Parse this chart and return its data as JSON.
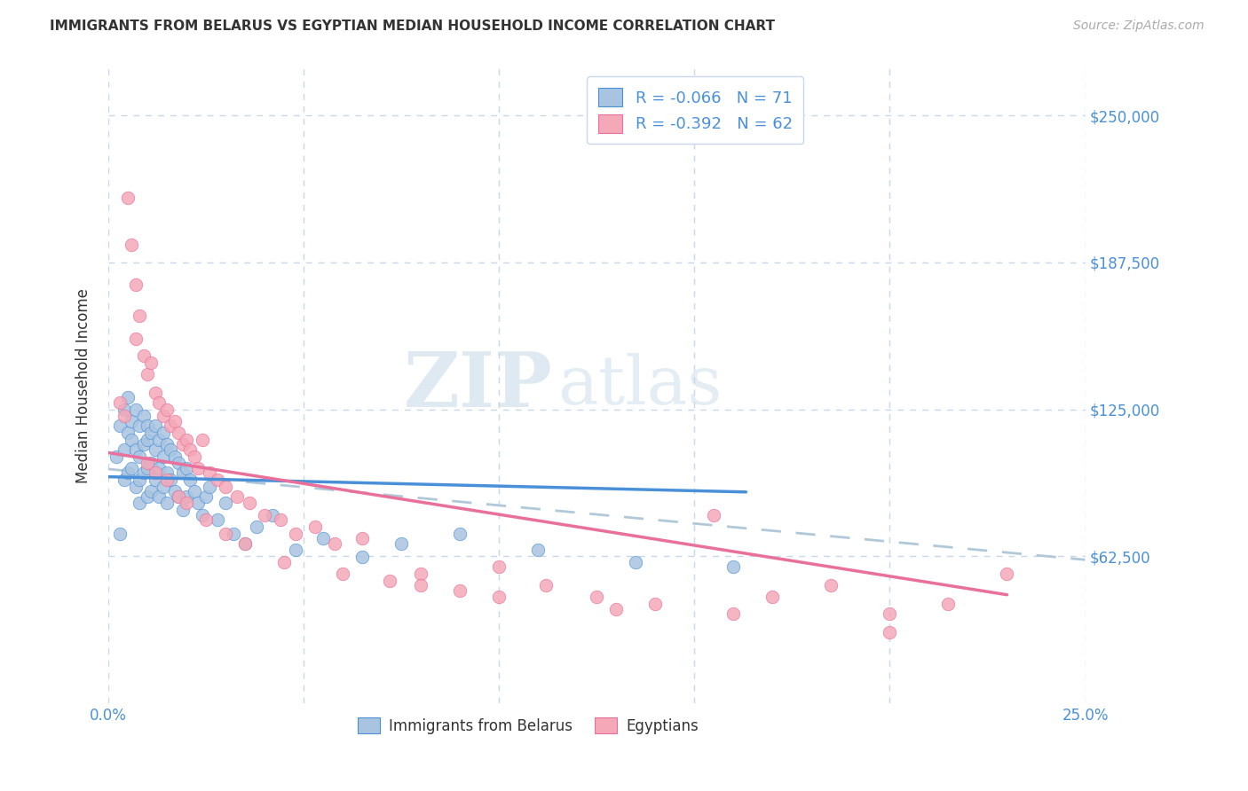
{
  "title": "IMMIGRANTS FROM BELARUS VS EGYPTIAN MEDIAN HOUSEHOLD INCOME CORRELATION CHART",
  "source": "Source: ZipAtlas.com",
  "ylabel": "Median Household Income",
  "xlim": [
    0.0,
    0.25
  ],
  "ylim": [
    0,
    270000
  ],
  "yticks": [
    62500,
    125000,
    187500,
    250000
  ],
  "ytick_labels": [
    "$62,500",
    "$125,000",
    "$187,500",
    "$250,000"
  ],
  "xticks": [
    0.0,
    0.05,
    0.1,
    0.15,
    0.2,
    0.25
  ],
  "xtick_labels": [
    "0.0%",
    "",
    "",
    "",
    "",
    "25.0%"
  ],
  "legend_r_belarus": "R = -0.066",
  "legend_n_belarus": "N = 71",
  "legend_r_egypt": "R = -0.392",
  "legend_n_egypt": "N = 62",
  "color_belarus": "#a8c4e0",
  "color_egypt": "#f4a8b8",
  "color_trend_belarus": "#4a90d9",
  "color_trend_egypt": "#e8709a",
  "color_trend_dashed": "#b0c8d8",
  "background_color": "#ffffff",
  "grid_color": "#c8d8e8",
  "belarus_x": [
    0.002,
    0.003,
    0.003,
    0.004,
    0.004,
    0.004,
    0.005,
    0.005,
    0.005,
    0.006,
    0.006,
    0.006,
    0.007,
    0.007,
    0.007,
    0.008,
    0.008,
    0.008,
    0.008,
    0.009,
    0.009,
    0.009,
    0.01,
    0.01,
    0.01,
    0.01,
    0.011,
    0.011,
    0.011,
    0.012,
    0.012,
    0.012,
    0.013,
    0.013,
    0.013,
    0.014,
    0.014,
    0.014,
    0.015,
    0.015,
    0.015,
    0.016,
    0.016,
    0.017,
    0.017,
    0.018,
    0.018,
    0.019,
    0.019,
    0.02,
    0.02,
    0.021,
    0.022,
    0.023,
    0.024,
    0.025,
    0.026,
    0.028,
    0.03,
    0.032,
    0.035,
    0.038,
    0.042,
    0.048,
    0.055,
    0.065,
    0.075,
    0.09,
    0.11,
    0.135,
    0.16
  ],
  "belarus_y": [
    105000,
    72000,
    118000,
    125000,
    108000,
    95000,
    130000,
    115000,
    98000,
    120000,
    112000,
    100000,
    125000,
    108000,
    92000,
    118000,
    105000,
    95000,
    85000,
    122000,
    110000,
    98000,
    118000,
    112000,
    100000,
    88000,
    115000,
    102000,
    90000,
    118000,
    108000,
    95000,
    112000,
    100000,
    88000,
    115000,
    105000,
    92000,
    110000,
    98000,
    85000,
    108000,
    95000,
    105000,
    90000,
    102000,
    88000,
    98000,
    82000,
    100000,
    88000,
    95000,
    90000,
    85000,
    80000,
    88000,
    92000,
    78000,
    85000,
    72000,
    68000,
    75000,
    80000,
    65000,
    70000,
    62000,
    68000,
    72000,
    65000,
    60000,
    58000
  ],
  "egypt_x": [
    0.003,
    0.004,
    0.005,
    0.006,
    0.007,
    0.007,
    0.008,
    0.009,
    0.01,
    0.011,
    0.012,
    0.013,
    0.014,
    0.015,
    0.016,
    0.017,
    0.018,
    0.019,
    0.02,
    0.021,
    0.022,
    0.023,
    0.024,
    0.026,
    0.028,
    0.03,
    0.033,
    0.036,
    0.04,
    0.044,
    0.048,
    0.053,
    0.058,
    0.065,
    0.072,
    0.08,
    0.09,
    0.1,
    0.112,
    0.125,
    0.14,
    0.155,
    0.17,
    0.185,
    0.2,
    0.215,
    0.23,
    0.01,
    0.012,
    0.015,
    0.018,
    0.02,
    0.025,
    0.03,
    0.035,
    0.045,
    0.06,
    0.08,
    0.1,
    0.13,
    0.16,
    0.2
  ],
  "egypt_y": [
    128000,
    122000,
    215000,
    195000,
    178000,
    155000,
    165000,
    148000,
    140000,
    145000,
    132000,
    128000,
    122000,
    125000,
    118000,
    120000,
    115000,
    110000,
    112000,
    108000,
    105000,
    100000,
    112000,
    98000,
    95000,
    92000,
    88000,
    85000,
    80000,
    78000,
    72000,
    75000,
    68000,
    70000,
    52000,
    55000,
    48000,
    58000,
    50000,
    45000,
    42000,
    80000,
    45000,
    50000,
    38000,
    42000,
    55000,
    102000,
    98000,
    95000,
    88000,
    85000,
    78000,
    72000,
    68000,
    60000,
    55000,
    50000,
    45000,
    40000,
    38000,
    30000
  ]
}
